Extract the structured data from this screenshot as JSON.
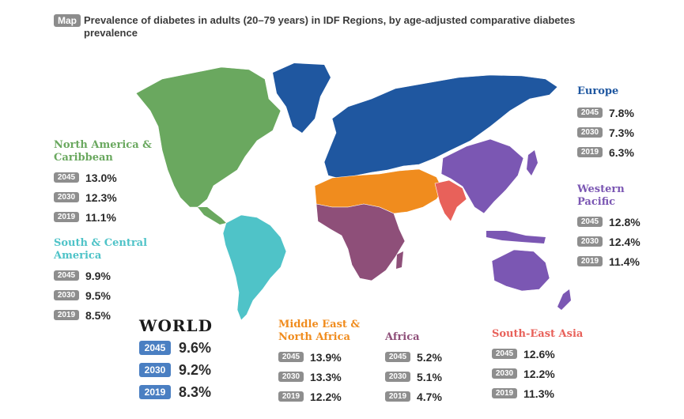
{
  "header": {
    "badge": "Map",
    "title": "Prevalence of diabetes in adults (20–79 years) in IDF Regions, by age-adjusted comparative diabetes prevalence"
  },
  "colors": {
    "north_america": "#6aa85f",
    "south_america": "#4fc3c8",
    "europe": "#1f57a0",
    "mena": "#f08c1e",
    "africa": "#8e4f79",
    "south_east_asia": "#e8615a",
    "western_pacific": "#7b57b3",
    "world_badge": "#4a7fc2",
    "year_badge": "#8e8e8e"
  },
  "regions": {
    "north_america": {
      "name_line1": "North America &",
      "name_line2": "Caribbean",
      "rows": [
        {
          "year": "2045",
          "value": "13.0%"
        },
        {
          "year": "2030",
          "value": "12.3%"
        },
        {
          "year": "2019",
          "value": "11.1%"
        }
      ]
    },
    "south_america": {
      "name_line1": "South & Central",
      "name_line2": "America",
      "rows": [
        {
          "year": "2045",
          "value": "9.9%"
        },
        {
          "year": "2030",
          "value": "9.5%"
        },
        {
          "year": "2019",
          "value": "8.5%"
        }
      ]
    },
    "europe": {
      "name_line1": "Europe",
      "rows": [
        {
          "year": "2045",
          "value": "7.8%"
        },
        {
          "year": "2030",
          "value": "7.3%"
        },
        {
          "year": "2019",
          "value": "6.3%"
        }
      ]
    },
    "western_pacific": {
      "name_line1": "Western",
      "name_line2": "Pacific",
      "rows": [
        {
          "year": "2045",
          "value": "12.8%"
        },
        {
          "year": "2030",
          "value": "12.4%"
        },
        {
          "year": "2019",
          "value": "11.4%"
        }
      ]
    },
    "mena": {
      "name_line1": "Middle East &",
      "name_line2": "North Africa",
      "rows": [
        {
          "year": "2045",
          "value": "13.9%"
        },
        {
          "year": "2030",
          "value": "13.3%"
        },
        {
          "year": "2019",
          "value": "12.2%"
        }
      ]
    },
    "africa": {
      "name_line1": "Africa",
      "rows": [
        {
          "year": "2045",
          "value": "5.2%"
        },
        {
          "year": "2030",
          "value": "5.1%"
        },
        {
          "year": "2019",
          "value": "4.7%"
        }
      ]
    },
    "south_east_asia": {
      "name_line1": "South-East Asia",
      "rows": [
        {
          "year": "2045",
          "value": "12.6%"
        },
        {
          "year": "2030",
          "value": "12.2%"
        },
        {
          "year": "2019",
          "value": "11.3%"
        }
      ]
    },
    "world": {
      "name_line1": "WORLD",
      "rows": [
        {
          "year": "2045",
          "value": "9.6%"
        },
        {
          "year": "2030",
          "value": "9.2%"
        },
        {
          "year": "2019",
          "value": "8.3%"
        }
      ]
    }
  }
}
